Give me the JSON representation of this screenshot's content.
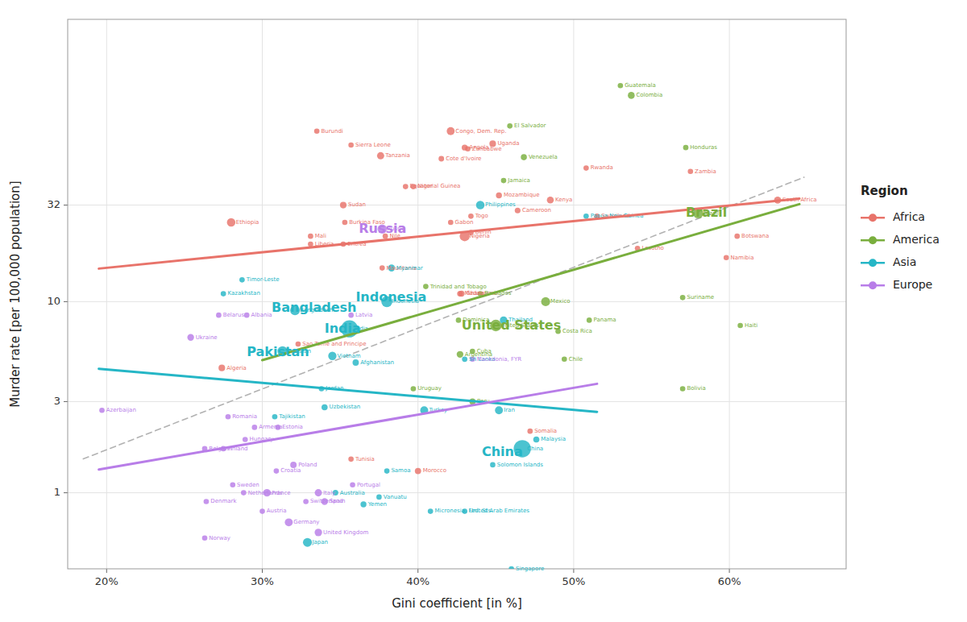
{
  "chart_data": {
    "type": "scatter",
    "x_label": "Gini coefficient [in %]",
    "y_label": "Murder rate [per 100,000 population]",
    "xlim": [
      0.175,
      0.675
    ],
    "ylim": [
      0.4,
      300
    ],
    "xticks": [
      {
        "value": 0.2,
        "label": "20%"
      },
      {
        "value": 0.3,
        "label": "30%"
      },
      {
        "value": 0.4,
        "label": "40%"
      },
      {
        "value": 0.5,
        "label": "50%"
      },
      {
        "value": 0.6,
        "label": "60%"
      }
    ],
    "yticks": [
      1,
      3,
      10,
      32
    ],
    "log": "y",
    "grid": true,
    "legend": "right",
    "legend_title": "Region",
    "series": [
      {
        "name": "Africa",
        "type": "scatter",
        "color": "#E8736A",
        "x": [
          0.631,
          0.415,
          0.421,
          0.43,
          0.357,
          0.448,
          0.432,
          0.335,
          0.352,
          0.376,
          0.508,
          0.575,
          0.28,
          0.392,
          0.397,
          0.331,
          0.331,
          0.353,
          0.43,
          0.352,
          0.452,
          0.485,
          0.464,
          0.434,
          0.377,
          0.427,
          0.428,
          0.323,
          0.274,
          0.472,
          0.541,
          0.515,
          0.605,
          0.598,
          0.4,
          0.357,
          0.379,
          0.421,
          0.434
        ],
        "values": [
          34.0,
          56.0,
          78.0,
          64.0,
          66.0,
          67.0,
          63.0,
          78.0,
          32.0,
          58.0,
          50.0,
          48.0,
          26.0,
          40.0,
          40.0,
          22.0,
          20.0,
          26.0,
          22.0,
          20.0,
          36.0,
          34.0,
          30.0,
          28.0,
          15.0,
          11.0,
          11.0,
          6.0,
          4.5,
          2.1,
          19.0,
          28.0,
          22.0,
          17.0,
          1.3,
          1.5,
          22.0,
          26.0,
          23.0
        ],
        "sizes": [
          55,
          23,
          81,
          29,
          7,
          42,
          16,
          11,
          41,
          57,
          12,
          17,
          105,
          1,
          21,
          18,
          5,
          19,
          191,
          5,
          30,
          49,
          25,
          8,
          4,
          25,
          29,
          0.2,
          42,
          15,
          2,
          1.4,
          2.3,
          2.5,
          36,
          11,
          2,
          2,
          11
        ],
        "labels": [
          "South Africa",
          "Cote d'Ivoire",
          "Congo, Dem. Rep.",
          "Angola",
          "Sierra Leone",
          "Uganda",
          "Zimbabwe",
          "Burundi",
          "Sudan",
          "Tanzania",
          "Rwanda",
          "Zambia",
          "Ethiopia",
          "Equatorial Guinea",
          "Niger",
          "Mali",
          "Liberia",
          "Burkina Faso",
          "Nigeria",
          "Eritrea",
          "Mozambique",
          "Kenya",
          "Cameroon",
          "Togo",
          "Mauritania",
          "Madagascar",
          "Ghana",
          "Sao Tome and Principe",
          "Algeria",
          "Somalia",
          "Lesotho",
          "Swaziland",
          "Botswana",
          "Namibia",
          "Morocco",
          "Tunisia",
          "Nile",
          "Gabon",
          "Benin"
        ]
      },
      {
        "name": "America",
        "type": "scatter",
        "color": "#79AE3D",
        "x": [
          0.459,
          0.455,
          0.537,
          0.53,
          0.468,
          0.572,
          0.44,
          0.405,
          0.426,
          0.45,
          0.482,
          0.58,
          0.435,
          0.49,
          0.494,
          0.427,
          0.397,
          0.51,
          0.435,
          0.57,
          0.607,
          0.57
        ],
        "values": [
          83.0,
          43.0,
          120.0,
          135.0,
          57.0,
          64.0,
          11.0,
          12.0,
          8.0,
          7.5,
          10.0,
          29.0,
          5.5,
          7.0,
          5.0,
          5.3,
          3.5,
          8.0,
          3.0,
          3.5,
          7.5,
          10.5
        ],
        "sizes": [
          6,
          3,
          49,
          17,
          32,
          9,
          0.3,
          1.4,
          0.1,
          325,
          129,
          209,
          11,
          5,
          18,
          44,
          3.5,
          4,
          32,
          11,
          11,
          0.6
        ],
        "labels": [
          "El Salvador",
          "Jamaica",
          "Colombia",
          "Guatemala",
          "Venezuela",
          "Honduras",
          "Barbados",
          "Trinidad and Tobago",
          "Dominica",
          "United States",
          "Mexico",
          "Brazil",
          "Cuba",
          "Costa Rica",
          "Chile",
          "Argentina",
          "Uruguay",
          "Panama",
          "Peru",
          "Bolivia",
          "Haiti",
          "Suriname"
        ]
      },
      {
        "name": "Asia",
        "type": "scatter",
        "color": "#25B6C6",
        "x": [
          0.44,
          0.508,
          0.287,
          0.275,
          0.383,
          0.38,
          0.321,
          0.356,
          0.455,
          0.313,
          0.338,
          0.345,
          0.36,
          0.308,
          0.34,
          0.404,
          0.452,
          0.467,
          0.476,
          0.43,
          0.347,
          0.329,
          0.46,
          0.43,
          0.365,
          0.408,
          0.448,
          0.375,
          0.38
        ],
        "values": [
          32.0,
          28.0,
          13.0,
          11.0,
          15.0,
          10.0,
          9.0,
          7.2,
          8.0,
          5.5,
          3.5,
          5.2,
          4.8,
          2.5,
          2.8,
          2.7,
          2.7,
          1.7,
          1.9,
          5.0,
          1.0,
          0.55,
          0.4,
          0.8,
          0.87,
          0.8,
          1.4,
          0.95,
          1.3
        ],
        "sizes": [
          105,
          8,
          1,
          18,
          53,
          264,
          165,
          1339,
          69,
          197,
          10,
          96,
          35,
          9,
          32,
          82,
          82,
          1390,
          32,
          21,
          24,
          127,
          5.8,
          9,
          29,
          0.1,
          0.6,
          0.3,
          0.2
        ],
        "labels": [
          "Philippines",
          "Papua New Guinea",
          "Timor-Leste",
          "Kazakhstan",
          "Myanmar",
          "Indonesia",
          "Bangladesh",
          "India",
          "Thailand",
          "Pakistan",
          "Jordan",
          "Vietnam",
          "Afghanistan",
          "Tajikistan",
          "Uzbekistan",
          "Turkey",
          "Iran",
          "China",
          "Malaysia",
          "Sri Lanka",
          "Australia",
          "Japan",
          "Singapore",
          "United Arab Emirates",
          "Yemen",
          "Micronesia, Fed. Sts.",
          "Solomon Islands",
          "Vanuatu",
          "Samoa"
        ]
      },
      {
        "name": "Europe",
        "type": "scatter",
        "color": "#B87DE8",
        "x": [
          0.377,
          0.357,
          0.29,
          0.272,
          0.254,
          0.197,
          0.435,
          0.278,
          0.295,
          0.275,
          0.31,
          0.289,
          0.263,
          0.309,
          0.32,
          0.288,
          0.328,
          0.336,
          0.34,
          0.3,
          0.303,
          0.263,
          0.264,
          0.281,
          0.317,
          0.336,
          0.358
        ],
        "values": [
          24.0,
          8.5,
          8.5,
          8.5,
          6.5,
          2.7,
          5.0,
          2.5,
          2.2,
          1.7,
          2.2,
          1.9,
          1.7,
          1.3,
          1.4,
          1.0,
          0.9,
          1.0,
          0.9,
          0.8,
          1.0,
          0.58,
          0.9,
          1.1,
          0.7,
          0.62,
          1.1
        ],
        "sizes": [
          144,
          2,
          3,
          9.5,
          45,
          10,
          2,
          19,
          3,
          5.5,
          1.3,
          9.8,
          11,
          4,
          38,
          17,
          8.5,
          61,
          46,
          8.8,
          67,
          5.3,
          5.8,
          10,
          83,
          66,
          10
        ],
        "labels": [
          "Russia",
          "Latvia",
          "Albania",
          "Belarus",
          "Ukraine",
          "Azerbaijan",
          "Macedonia, FYR",
          "Romania",
          "Armenia",
          "Finland",
          "Estonia",
          "Hungary",
          "Belgium",
          "Croatia",
          "Poland",
          "Netherlands",
          "Switzerland",
          "Italy",
          "Spain",
          "Austria",
          "France",
          "Norway",
          "Denmark",
          "Sweden",
          "Germany",
          "United Kingdom",
          "Portugal"
        ]
      },
      {
        "type": "line",
        "color": "#AAAAAA",
        "line_style": "dashed",
        "x": [
          0.185,
          0.648
        ],
        "values": [
          1.504,
          44.77
        ]
      },
      {
        "type": "line",
        "color": "#E8736A",
        "line_style": "solid",
        "x": [
          0.195,
          0.645
        ],
        "values": [
          14.89,
          34.64
        ]
      },
      {
        "type": "line",
        "color": "#79AE3D",
        "line_style": "solid",
        "x": [
          0.3,
          0.645
        ],
        "values": [
          4.941,
          32.38
        ]
      },
      {
        "type": "line",
        "color": "#25B6C6",
        "line_style": "solid",
        "x": [
          0.195,
          0.515
        ],
        "values": [
          4.456,
          2.65
        ]
      },
      {
        "type": "line",
        "color": "#B87DE8",
        "line_style": "solid",
        "x": [
          0.195,
          0.515
        ],
        "values": [
          1.323,
          3.716
        ]
      }
    ],
    "annotations": [
      {
        "text": "India",
        "x": 0.34,
        "y": 7.2,
        "color": "#25B6C6"
      },
      {
        "text": "China",
        "x": 0.441,
        "y": 1.62,
        "color": "#25B6C6"
      },
      {
        "text": "United States",
        "x": 0.428,
        "y": 7.5,
        "color": "#79AE3D"
      },
      {
        "text": "Brazil",
        "x": 0.572,
        "y": 29.0,
        "color": "#79AE3D"
      },
      {
        "text": "Russia",
        "x": 0.362,
        "y": 24.0,
        "color": "#B87DE8"
      },
      {
        "text": "Indonesia",
        "x": 0.36,
        "y": 10.5,
        "color": "#25B6C6"
      },
      {
        "text": "Bangladesh",
        "x": 0.306,
        "y": 9.2,
        "color": "#25B6C6"
      },
      {
        "text": "Pakistan",
        "x": 0.29,
        "y": 5.4,
        "color": "#25B6C6"
      }
    ]
  }
}
